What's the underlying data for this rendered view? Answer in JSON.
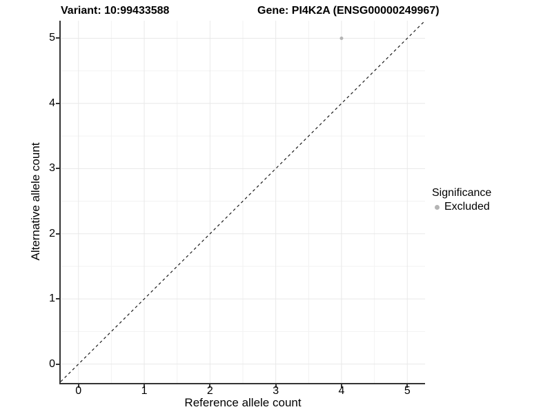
{
  "header": {
    "variant_title": "Variant: 10:99433588",
    "gene_title": "Gene: PI4K2A (ENSG00000249967)"
  },
  "chart_data": {
    "type": "scatter",
    "title_left": "Variant: 10:99433588",
    "title_right": "Gene: PI4K2A (ENSG00000249967)",
    "xlabel": "Reference allele count",
    "ylabel": "Alternative allele count",
    "x_ticks": [
      0,
      1,
      2,
      3,
      4,
      5
    ],
    "y_ticks": [
      0,
      1,
      2,
      3,
      4,
      5
    ],
    "minor_ticks_x": [
      0.5,
      1.5,
      2.5,
      3.5,
      4.5
    ],
    "minor_ticks_y": [
      0.5,
      1.5,
      2.5,
      3.5,
      4.5
    ],
    "xlim": [
      -0.27,
      5.27
    ],
    "ylim": [
      -0.29,
      5.27
    ],
    "grid": true,
    "reference_line": {
      "type": "identity",
      "style": "dashed",
      "color": "#1a1a1a"
    },
    "series": [
      {
        "name": "Excluded",
        "color": "#b4b4b4",
        "points": [
          {
            "x": 4,
            "y": 5
          }
        ],
        "point_radius": 2.5
      }
    ],
    "legend": {
      "title": "Significance",
      "position": "right"
    }
  },
  "colors": {
    "grid_major": "#e8e8e8",
    "grid_minor": "#f2f2f2",
    "axis_line": "#333333",
    "background": "#ffffff",
    "point": "#b4b4b4"
  }
}
